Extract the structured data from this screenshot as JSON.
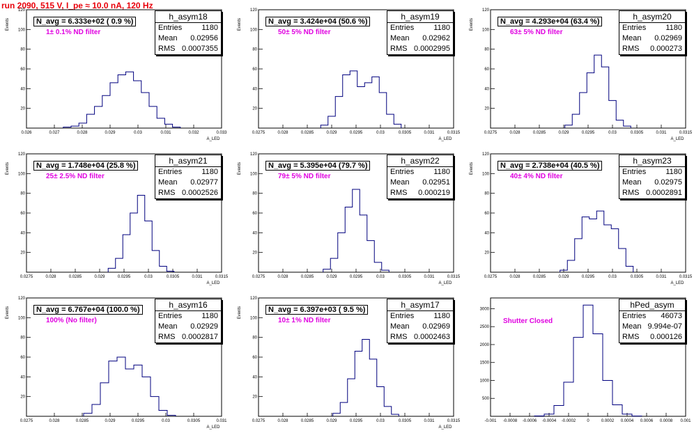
{
  "run_title": "run 2090,   515 V, I_pe ≈ 10.0 nA, 120 Hz",
  "colors": {
    "title": "#e8000b",
    "hist_line": "#00007f",
    "filter_text": "#e000e0"
  },
  "chart_data": [
    {
      "type": "histogram",
      "name": "h_asym18",
      "navg": "N_avg = 6.333e+02 ( 0.9 %)",
      "filter": "1± 0.1% ND filter",
      "stats": {
        "entries": "1180",
        "mean": "0.02956",
        "rms": "0.0007355"
      },
      "xlim": [
        0.026,
        0.033
      ],
      "ylim": [
        0,
        120
      ],
      "xticks": [
        "0.026",
        "0.027",
        "0.028",
        "0.029",
        "0.03",
        "0.031",
        "0.032",
        "0.033"
      ],
      "yticks": [
        "20",
        "40",
        "60",
        "80",
        "100",
        "120"
      ],
      "xlabel": "A_LED",
      "ylabel": "Events",
      "x": [
        0.02746,
        0.02774,
        0.02802,
        0.0283,
        0.02858,
        0.02886,
        0.02914,
        0.02942,
        0.0297,
        0.02998,
        0.03026,
        0.03054,
        0.03082,
        0.0311,
        0.03138
      ],
      "counts": [
        1,
        2,
        5,
        14,
        22,
        33,
        46,
        54,
        57,
        48,
        36,
        22,
        10,
        4,
        1
      ]
    },
    {
      "type": "histogram",
      "name": "h_asym19",
      "navg": "N_avg = 3.424e+04 (50.6 %)",
      "filter": "50± 5% ND filter",
      "stats": {
        "entries": "1180",
        "mean": "0.02962",
        "rms": "0.0002995"
      },
      "xlim": [
        0.0275,
        0.0315
      ],
      "ylim": [
        0,
        120
      ],
      "xticks": [
        "0.0275",
        "0.028",
        "0.0285",
        "0.029",
        "0.0295",
        "0.03",
        "0.0305",
        "0.031",
        "0.0315"
      ],
      "yticks": [
        "20",
        "40",
        "60",
        "80",
        "100",
        "120"
      ],
      "xlabel": "A_LED",
      "ylabel": "Events",
      "x": [
        0.02885,
        0.029,
        0.02915,
        0.0293,
        0.02945,
        0.0296,
        0.02975,
        0.0299,
        0.03005,
        0.0302,
        0.03035
      ],
      "counts": [
        3,
        12,
        32,
        54,
        58,
        42,
        46,
        52,
        36,
        14,
        4
      ]
    },
    {
      "type": "histogram",
      "name": "h_asym20",
      "navg": "N_avg = 4.293e+04 (63.4 %)",
      "filter": "63± 5% ND filter",
      "stats": {
        "entries": "1180",
        "mean": "0.02969",
        "rms": "0.000273"
      },
      "xlim": [
        0.0275,
        0.0315
      ],
      "ylim": [
        0,
        120
      ],
      "xticks": [
        "0.0275",
        "0.028",
        "0.0285",
        "0.029",
        "0.0295",
        "0.03",
        "0.0305",
        "0.031",
        "0.0315"
      ],
      "yticks": [
        "20",
        "40",
        "60",
        "80",
        "100",
        "120"
      ],
      "xlabel": "A_LED",
      "ylabel": "Events",
      "x": [
        0.0291,
        0.02925,
        0.0294,
        0.02955,
        0.0297,
        0.02985,
        0.03,
        0.03015,
        0.0303
      ],
      "counts": [
        3,
        14,
        36,
        56,
        74,
        62,
        28,
        8,
        2
      ]
    },
    {
      "type": "histogram",
      "name": "h_asym21",
      "navg": "N_avg = 1.748e+04 (25.8 %)",
      "filter": "25± 2.5% ND filter",
      "stats": {
        "entries": "1180",
        "mean": "0.02977",
        "rms": "0.0002526"
      },
      "xlim": [
        0.0275,
        0.0315
      ],
      "ylim": [
        0,
        120
      ],
      "xticks": [
        "0.0275",
        "0.028",
        "0.0285",
        "0.029",
        "0.0295",
        "0.03",
        "0.0305",
        "0.031",
        "0.0315"
      ],
      "yticks": [
        "20",
        "40",
        "60",
        "80",
        "100",
        "120"
      ],
      "xlabel": "A_LED",
      "ylabel": "Events",
      "x": [
        0.02925,
        0.0294,
        0.02955,
        0.0297,
        0.02985,
        0.03,
        0.03015,
        0.0303,
        0.03045
      ],
      "counts": [
        4,
        14,
        38,
        60,
        78,
        52,
        22,
        6,
        1
      ]
    },
    {
      "type": "histogram",
      "name": "h_asym22",
      "navg": "N_avg = 5.395e+04 (79.7 %)",
      "filter": "79± 5% ND filter",
      "stats": {
        "entries": "1180",
        "mean": "0.02951",
        "rms": "0.000219"
      },
      "xlim": [
        0.0275,
        0.0315
      ],
      "ylim": [
        0,
        120
      ],
      "xticks": [
        "0.0275",
        "0.028",
        "0.0285",
        "0.029",
        "0.0295",
        "0.03",
        "0.0305",
        "0.031",
        "0.0315"
      ],
      "yticks": [
        "20",
        "40",
        "60",
        "80",
        "100",
        "120"
      ],
      "xlabel": "A_LED",
      "ylabel": "Events",
      "x": [
        0.0289,
        0.02905,
        0.0292,
        0.02935,
        0.0295,
        0.02965,
        0.0298,
        0.02995,
        0.0301
      ],
      "counts": [
        3,
        14,
        40,
        66,
        84,
        58,
        32,
        10,
        2
      ]
    },
    {
      "type": "histogram",
      "name": "h_asym23",
      "navg": "N_avg = 2.738e+04 (40.5 %)",
      "filter": "40± 4% ND filter",
      "stats": {
        "entries": "1180",
        "mean": "0.02975",
        "rms": "0.0002891"
      },
      "xlim": [
        0.0275,
        0.0315
      ],
      "ylim": [
        0,
        120
      ],
      "xticks": [
        "0.0275",
        "0.028",
        "0.0285",
        "0.029",
        "0.0295",
        "0.03",
        "0.0305",
        "0.031",
        "0.0315"
      ],
      "yticks": [
        "20",
        "40",
        "60",
        "80",
        "100",
        "120"
      ],
      "xlabel": "A_LED",
      "ylabel": "Events",
      "x": [
        0.029,
        0.02915,
        0.0293,
        0.02945,
        0.0296,
        0.02975,
        0.0299,
        0.03005,
        0.0302,
        0.03035
      ],
      "counts": [
        2,
        12,
        34,
        56,
        54,
        62,
        48,
        44,
        24,
        6
      ]
    },
    {
      "type": "histogram",
      "name": "h_asym16",
      "navg": "N_avg = 6.767e+04 (100.0 %)",
      "filter": "100% (No filter)",
      "stats": {
        "entries": "1180",
        "mean": "0.02929",
        "rms": "0.0002817"
      },
      "xlim": [
        0.0275,
        0.031
      ],
      "ylim": [
        0,
        120
      ],
      "xticks": [
        "0.0275",
        "0.028",
        "0.0285",
        "0.029",
        "0.0295",
        "0.03",
        "0.0305",
        "0.031"
      ],
      "yticks": [
        "20",
        "40",
        "60",
        "80",
        "100",
        "120"
      ],
      "xlabel": "A_LED",
      "ylabel": "Events",
      "x": [
        0.0286,
        0.02875,
        0.0289,
        0.02905,
        0.0292,
        0.02935,
        0.0295,
        0.02965,
        0.0298,
        0.02995,
        0.0301
      ],
      "counts": [
        3,
        12,
        34,
        56,
        60,
        48,
        52,
        40,
        20,
        6,
        1
      ]
    },
    {
      "type": "histogram",
      "name": "h_asym17",
      "navg": "N_avg = 6.397e+03 ( 9.5 %)",
      "filter": "10± 1% ND filter",
      "stats": {
        "entries": "1180",
        "mean": "0.02969",
        "rms": "0.0002463"
      },
      "xlim": [
        0.0275,
        0.0315
      ],
      "ylim": [
        0,
        120
      ],
      "xticks": [
        "0.0275",
        "0.028",
        "0.0285",
        "0.029",
        "0.0295",
        "0.03",
        "0.0305",
        "0.031",
        "0.0315"
      ],
      "yticks": [
        "20",
        "40",
        "60",
        "80",
        "100",
        "120"
      ],
      "xlabel": "A_LED",
      "ylabel": "Events",
      "x": [
        0.0291,
        0.02925,
        0.0294,
        0.02955,
        0.0297,
        0.02985,
        0.03,
        0.03015,
        0.0303
      ],
      "counts": [
        3,
        14,
        38,
        66,
        78,
        58,
        30,
        10,
        2
      ]
    },
    {
      "type": "histogram",
      "name": "hPed_asym",
      "navg": "",
      "filter": "Shutter Closed",
      "stats": {
        "entries": "46073",
        "mean": "9.994e-07",
        "rms": "0.000126"
      },
      "xlim": [
        -0.001,
        0.001
      ],
      "ylim": [
        0,
        3300
      ],
      "xticks": [
        "-0.001",
        "-0.0008",
        "-0.0006",
        "-0.0004",
        "-0.0002",
        "0",
        "0.0002",
        "0.0004",
        "0.0006",
        "0.0008",
        "0.001"
      ],
      "yticks": [
        "500",
        "1000",
        "1500",
        "2000",
        "2500",
        "3000"
      ],
      "xlabel": "",
      "ylabel": "",
      "x": [
        -0.0005,
        -0.0004,
        -0.0003,
        -0.0002,
        -0.0001,
        0,
        0.0001,
        0.0002,
        0.0003,
        0.0004,
        0.0005
      ],
      "counts": [
        10,
        60,
        300,
        950,
        2200,
        3100,
        2300,
        1000,
        320,
        60,
        8
      ]
    }
  ]
}
